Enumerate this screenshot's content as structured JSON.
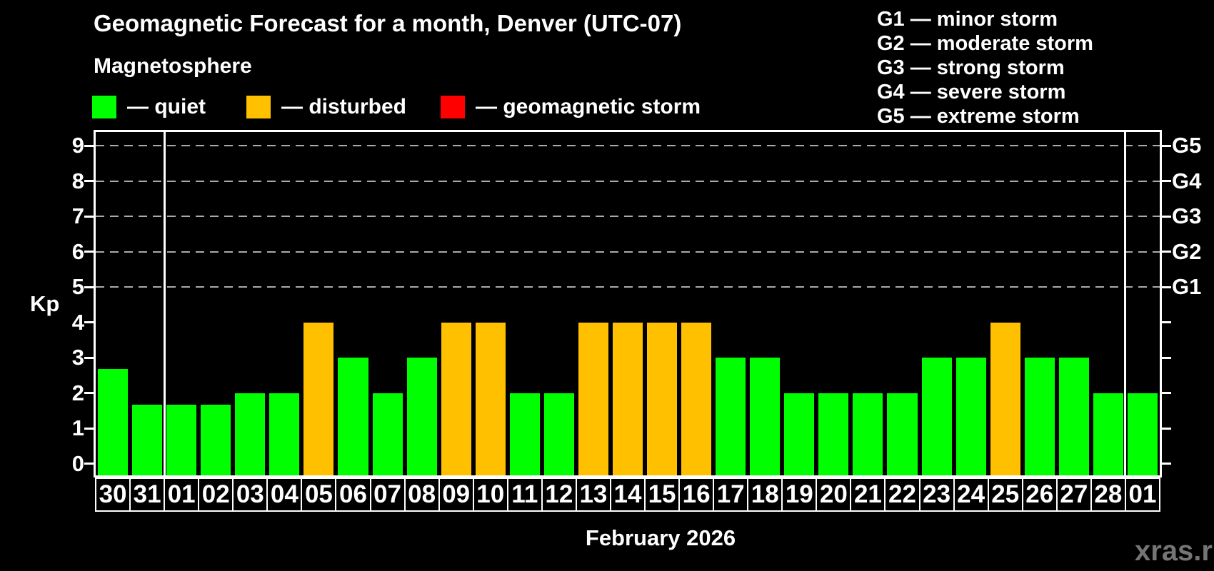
{
  "title": "Geomagnetic Forecast for a month, Denver (UTC-07)",
  "subtitle": "Magnetosphere",
  "legend": {
    "quiet_label": "— quiet",
    "disturbed_label": "— disturbed",
    "storm_label": "— geomagnetic storm"
  },
  "g_legend": [
    "G1 — minor storm",
    "G2 — moderate storm",
    "G3 — strong storm",
    "G4 — severe storm",
    "G5 — extreme storm"
  ],
  "axis": {
    "kp_label": "Kp",
    "left_tick_labels": [
      "0",
      "1",
      "2",
      "3",
      "4",
      "5",
      "6",
      "7",
      "8",
      "9"
    ],
    "right_labels": [
      {
        "kp": 5,
        "label": "G1"
      },
      {
        "kp": 6,
        "label": "G2"
      },
      {
        "kp": 7,
        "label": "G3"
      },
      {
        "kp": 8,
        "label": "G4"
      },
      {
        "kp": 9,
        "label": "G5"
      }
    ]
  },
  "colors": {
    "quiet": "#00ff00",
    "disturbed": "#ffc000",
    "storm": "#ff0000",
    "grid": "#aaaaaa",
    "axis": "#ffffff",
    "watermark_text": "#757575"
  },
  "footer": {
    "month_label": "February 2026",
    "watermark": "xras.ru"
  },
  "chart_data": {
    "type": "bar",
    "title": "Geomagnetic Forecast for a month, Denver (UTC-07)",
    "xlabel": "February 2026",
    "ylabel": "Kp",
    "ylim": [
      0,
      9
    ],
    "grid": "dashed horizontal at Kp 5-9 only",
    "legend_position": "top",
    "grid_kp_levels": [
      5,
      6,
      7,
      8,
      9
    ],
    "month_boundary_slots": [
      2,
      30
    ],
    "categories": [
      "30",
      "31",
      "01",
      "02",
      "03",
      "04",
      "05",
      "06",
      "07",
      "08",
      "09",
      "10",
      "11",
      "12",
      "13",
      "14",
      "15",
      "16",
      "17",
      "18",
      "19",
      "20",
      "21",
      "22",
      "23",
      "24",
      "25",
      "26",
      "27",
      "28",
      "01"
    ],
    "values": [
      2.67,
      1.67,
      1.67,
      1.67,
      2,
      2,
      4,
      3,
      2,
      3,
      4,
      4,
      2,
      2,
      4,
      4,
      4,
      4,
      3,
      3,
      2,
      2,
      2,
      2,
      3,
      3,
      4,
      3,
      3,
      2,
      2
    ],
    "states": [
      "quiet",
      "quiet",
      "quiet",
      "quiet",
      "quiet",
      "quiet",
      "disturbed",
      "quiet",
      "quiet",
      "quiet",
      "disturbed",
      "disturbed",
      "quiet",
      "quiet",
      "disturbed",
      "disturbed",
      "disturbed",
      "disturbed",
      "quiet",
      "quiet",
      "quiet",
      "quiet",
      "quiet",
      "quiet",
      "quiet",
      "quiet",
      "disturbed",
      "quiet",
      "quiet",
      "quiet",
      "quiet"
    ]
  }
}
